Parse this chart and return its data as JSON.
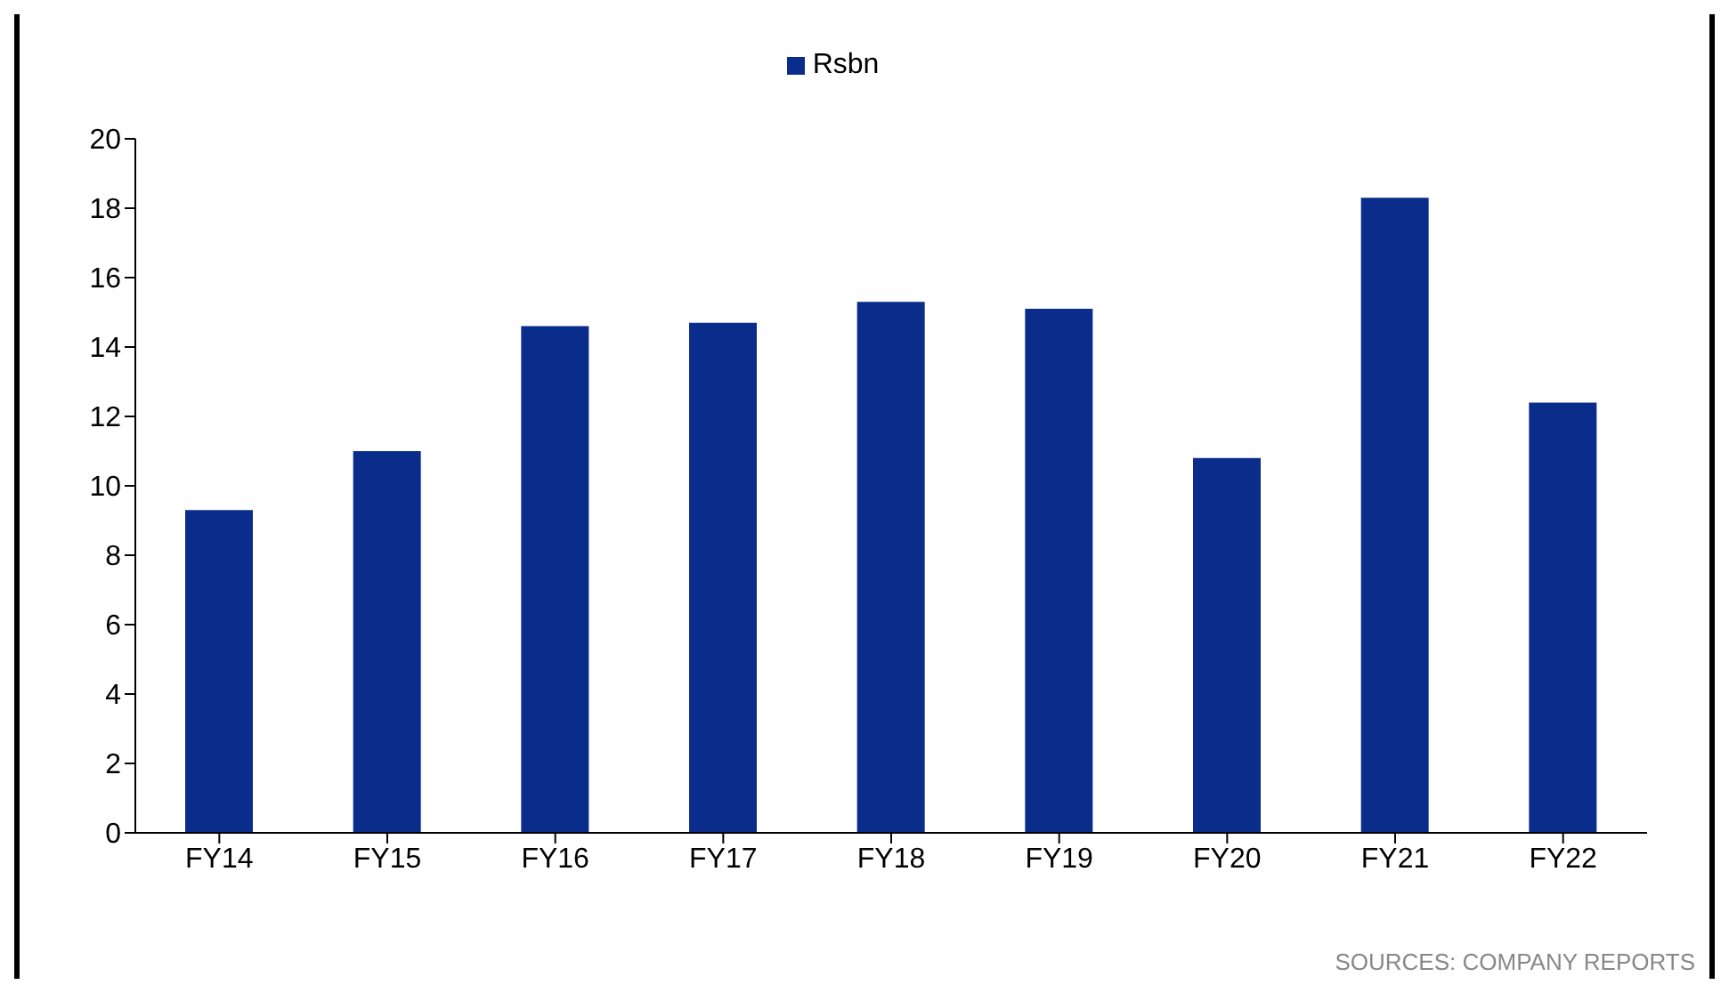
{
  "chart_data": {
    "type": "bar",
    "categories": [
      "FY14",
      "FY15",
      "FY16",
      "FY17",
      "FY18",
      "FY19",
      "FY20",
      "FY21",
      "FY22"
    ],
    "series": [
      {
        "name": "Rsbn",
        "color": "#0a2d8c",
        "values": [
          9.3,
          11.0,
          14.6,
          14.7,
          15.3,
          15.1,
          10.8,
          18.3,
          12.4
        ]
      }
    ],
    "ylim": [
      0,
      20
    ],
    "yticks": [
      0,
      2,
      4,
      6,
      8,
      10,
      12,
      14,
      16,
      18,
      20
    ],
    "grid": false,
    "legend": "top",
    "annotations": [
      "SOURCES: COMPANY REPORTS"
    ]
  }
}
